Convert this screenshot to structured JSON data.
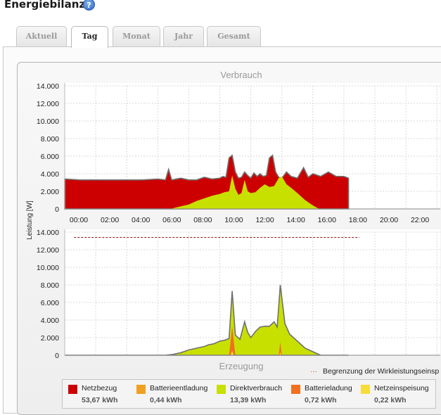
{
  "header": {
    "title": "Energiebilanz",
    "help_icon": "?"
  },
  "tabs": [
    {
      "label": "Aktuell",
      "active": false
    },
    {
      "label": "Tag",
      "active": true
    },
    {
      "label": "Monat",
      "active": false
    },
    {
      "label": "Jahr",
      "active": false
    },
    {
      "label": "Gesamt",
      "active": false
    }
  ],
  "chart_labels": {
    "top_title": "Verbrauch",
    "bottom_title": "Erzeugung",
    "ylabel": "Leistung [W]",
    "limit_label": "Begrenzung der Wirkleistungseinsp"
  },
  "colors": {
    "netzbezug": "#cc0000",
    "batterieentladung": "#f0a020",
    "direktverbrauch": "#c8e000",
    "batterieladung": "#f07020",
    "netzeinspeisung": "#f7dc3a",
    "outline": "#707070",
    "limit_line": "#8b1a1a"
  },
  "legend": [
    {
      "name": "Netzbezug",
      "value": "53,67 kWh",
      "color": "#cc0000"
    },
    {
      "name": "Batterieentladung",
      "value": "0,44 kWh",
      "color": "#f0a020"
    },
    {
      "name": "Direktverbrauch",
      "value": "13,39 kWh",
      "color": "#c8e000"
    },
    {
      "name": "Batterieladung",
      "value": "0,72 kWh",
      "color": "#f07020"
    },
    {
      "name": "Netzeinspeisung",
      "value": "0,22 kWh",
      "color": "#f7dc3a"
    }
  ],
  "chart_data": [
    {
      "type": "area",
      "title": "Verbrauch",
      "ylabel": "Leistung [W]",
      "ylim": [
        0,
        14000
      ],
      "y_ticks": [
        "0",
        "2.000",
        "4.000",
        "6.000",
        "8.000",
        "10.000",
        "12.000",
        "14.000"
      ],
      "x_ticks": [
        "00:00",
        "02:00",
        "04:00",
        "06:00",
        "08:00",
        "10:00",
        "12:00",
        "14:00",
        "16:00",
        "18:00",
        "20:00",
        "22:00"
      ],
      "grid": true,
      "series": [
        {
          "name": "Netzbezug",
          "x": [
            0.0,
            1.0,
            2.0,
            3.0,
            4.0,
            5.0,
            6.0,
            6.5,
            6.7,
            6.9,
            7.5,
            8.0,
            8.5,
            9.0,
            9.5,
            10.0,
            10.2,
            10.4,
            10.6,
            10.8,
            11.0,
            11.2,
            11.4,
            11.6,
            11.8,
            12.0,
            12.2,
            12.4,
            12.6,
            12.8,
            13.0,
            13.2,
            13.4,
            13.6,
            13.8,
            14.0,
            14.3,
            14.6,
            15.0,
            15.4,
            15.7,
            16.0,
            16.5,
            17.0,
            17.5,
            18.0,
            18.3
          ],
          "values": [
            3400,
            3300,
            3300,
            3300,
            3300,
            3300,
            3400,
            3300,
            4500,
            3300,
            3500,
            3300,
            3300,
            3600,
            3400,
            3500,
            3700,
            3600,
            5800,
            6100,
            4200,
            3500,
            3600,
            4200,
            3800,
            3500,
            4100,
            3700,
            4000,
            3700,
            3800,
            5800,
            6100,
            4200,
            3600,
            3500,
            4200,
            3700,
            3500,
            4700,
            3600,
            4000,
            3700,
            4200,
            3700,
            3700,
            3500
          ]
        },
        {
          "name": "Direktverbrauch",
          "x": [
            6.8,
            7.5,
            8.0,
            8.5,
            9.0,
            9.5,
            10.0,
            10.3,
            10.6,
            10.8,
            11.0,
            11.2,
            11.4,
            11.6,
            11.8,
            12.0,
            12.3,
            12.6,
            12.9,
            13.2,
            13.5,
            13.8,
            14.0,
            14.3,
            14.6,
            15.0,
            15.5,
            16.0,
            16.3,
            16.5
          ],
          "values": [
            0,
            300,
            500,
            900,
            1200,
            1500,
            1700,
            1900,
            2000,
            3800,
            2300,
            1600,
            1800,
            3300,
            2000,
            1800,
            1900,
            2400,
            2800,
            2500,
            2600,
            3500,
            3700,
            2800,
            2400,
            1800,
            1000,
            400,
            100,
            0
          ]
        }
      ]
    },
    {
      "type": "area",
      "title": "Erzeugung",
      "ylabel": "Leistung [W]",
      "ylim": [
        0,
        14000
      ],
      "y_ticks": [
        "0",
        "2.000",
        "4.000",
        "6.000",
        "8.000",
        "10.000",
        "12.000",
        "14.000"
      ],
      "limit_line": 13400,
      "limit_label": "Begrenzung der Wirkleistungseinsp",
      "grid": true,
      "series": [
        {
          "name": "Direktverbrauch",
          "x": [
            0.0,
            6.5,
            7.0,
            7.5,
            8.0,
            8.5,
            9.0,
            9.3,
            9.6,
            10.0,
            10.3,
            10.6,
            10.8,
            11.0,
            11.3,
            11.6,
            11.8,
            12.0,
            12.3,
            12.6,
            12.9,
            13.2,
            13.5,
            13.7,
            13.9,
            14.2,
            14.5,
            15.0,
            15.5,
            16.0,
            16.5,
            18.3
          ],
          "values": [
            0,
            0,
            100,
            300,
            600,
            800,
            1000,
            1200,
            1300,
            1600,
            1700,
            1900,
            7300,
            2300,
            1800,
            3800,
            2600,
            2000,
            2700,
            3200,
            3300,
            3300,
            3800,
            3200,
            8000,
            3600,
            2400,
            1600,
            800,
            400,
            0,
            0
          ]
        },
        {
          "name": "Batterieladung",
          "x": [
            10.6,
            10.8,
            11.0,
            13.8,
            13.9,
            14.0
          ],
          "values": [
            0,
            3300,
            0,
            0,
            1500,
            0
          ]
        },
        {
          "name": "Netzeinspeisung",
          "x": [
            10.7,
            10.8,
            10.9,
            13.85,
            13.9,
            13.95
          ],
          "values": [
            0,
            500,
            0,
            0,
            400,
            0
          ]
        }
      ]
    }
  ]
}
